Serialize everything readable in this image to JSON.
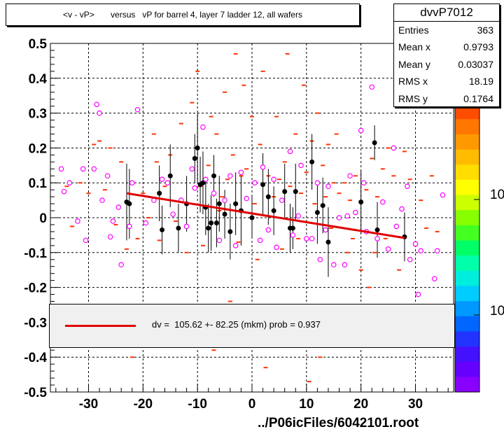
{
  "title": "<v - vP>       versus   vP for barrel 4, layer 7 ladder 12, all wafers",
  "stats": {
    "name": "dvvP7012",
    "rows": [
      {
        "label": "Entries",
        "value": "363"
      },
      {
        "label": "Mean x",
        "value": "0.9793"
      },
      {
        "label": "Mean y",
        "value": "0.03037"
      },
      {
        "label": "RMS x",
        "value": "18.19"
      },
      {
        "label": "RMS y",
        "value": "0.1764"
      }
    ]
  },
  "fit_legend": {
    "text": "dv =  105.62 +- 82.25 (mkm) prob = 0.937",
    "color": "#e00000"
  },
  "footer": "../P06icFiles/6042101.root",
  "palette_labels": [
    "10",
    "10"
  ],
  "palette_colors": [
    "#7a1f00",
    "#b30000",
    "#e00000",
    "#ff2200",
    "#ff4d00",
    "#ff7700",
    "#ff9900",
    "#ffbb00",
    "#ffdd00",
    "#ffff00",
    "#ccff00",
    "#88ff00",
    "#44ff22",
    "#00ff66",
    "#00ffaa",
    "#00eedd",
    "#00ccff",
    "#0099ff",
    "#0066ff",
    "#2233ff",
    "#4411ff",
    "#6600ff",
    "#8800ff"
  ],
  "chart_data": {
    "type": "scatter",
    "xlim": [
      -37,
      37
    ],
    "ylim": [
      -0.5,
      0.5
    ],
    "x_ticks": [
      -30,
      -20,
      -10,
      0,
      10,
      20,
      30
    ],
    "y_ticks": [
      0.5,
      0.4,
      0.3,
      0.2,
      0.1,
      0,
      -0.1,
      -0.2,
      -0.3,
      -0.4,
      -0.5
    ],
    "grid": true,
    "fit_line": {
      "x": [
        -23,
        28
      ],
      "y": [
        0.07,
        -0.058
      ],
      "color": "#e00000"
    },
    "profile_points": [
      {
        "x": -23,
        "y": 0.045,
        "err": 0.11
      },
      {
        "x": -22.5,
        "y": 0.04,
        "err": 0.1
      },
      {
        "x": -17,
        "y": 0.07,
        "err": 0.08
      },
      {
        "x": -16.5,
        "y": -0.035,
        "err": 0.07
      },
      {
        "x": -15,
        "y": 0.12,
        "err": 0.09
      },
      {
        "x": -13.5,
        "y": -0.03,
        "err": 0.07
      },
      {
        "x": -12,
        "y": 0.04,
        "err": 0.08
      },
      {
        "x": -10.5,
        "y": 0.17,
        "err": 0.07
      },
      {
        "x": -10,
        "y": 0.2,
        "err": 0.1
      },
      {
        "x": -9.5,
        "y": 0.095,
        "err": 0.08
      },
      {
        "x": -9,
        "y": 0.1,
        "err": 0.09
      },
      {
        "x": -8.5,
        "y": 0.03,
        "err": 0.08
      },
      {
        "x": -8,
        "y": -0.03,
        "err": 0.07
      },
      {
        "x": -7.5,
        "y": -0.015,
        "err": 0.08
      },
      {
        "x": -7,
        "y": 0.12,
        "err": 0.06
      },
      {
        "x": -6.5,
        "y": -0.015,
        "err": 0.07
      },
      {
        "x": -6,
        "y": 0.04,
        "err": 0.08
      },
      {
        "x": -5,
        "y": 0.01,
        "err": 0.07
      },
      {
        "x": -4,
        "y": -0.04,
        "err": 0.08
      },
      {
        "x": -3,
        "y": 0.04,
        "err": 0.09
      },
      {
        "x": -2,
        "y": 0.02,
        "err": 0.1
      },
      {
        "x": 0,
        "y": 0.0,
        "err": 0.06
      },
      {
        "x": 2,
        "y": 0.095,
        "err": 0.09
      },
      {
        "x": 3,
        "y": 0.06,
        "err": 0.08
      },
      {
        "x": 4,
        "y": 0.02,
        "err": 0.07
      },
      {
        "x": 6,
        "y": 0.075,
        "err": 0.08
      },
      {
        "x": 7,
        "y": -0.03,
        "err": 0.07
      },
      {
        "x": 7.5,
        "y": -0.03,
        "err": 0.06
      },
      {
        "x": 8,
        "y": 0.075,
        "err": 0.08
      },
      {
        "x": 11,
        "y": 0.16,
        "err": 0.08
      },
      {
        "x": 12,
        "y": 0.015,
        "err": 0.09
      },
      {
        "x": 13,
        "y": 0.035,
        "err": 0.08
      },
      {
        "x": 14,
        "y": -0.07,
        "err": 0.1
      },
      {
        "x": 20,
        "y": 0.045,
        "err": 0.09
      },
      {
        "x": 22.5,
        "y": 0.215,
        "err": 0.05
      },
      {
        "x": 23,
        "y": -0.035,
        "err": 0.08
      },
      {
        "x": 28,
        "y": -0.055,
        "err": 0.07
      }
    ],
    "diamond_points": [
      {
        "x": -35,
        "y": 0.14
      },
      {
        "x": -34.5,
        "y": 0.075
      },
      {
        "x": -33.5,
        "y": 0.1
      },
      {
        "x": -32,
        "y": -0.01
      },
      {
        "x": -31,
        "y": 0.14
      },
      {
        "x": -30.5,
        "y": -0.065
      },
      {
        "x": -29,
        "y": 0.14
      },
      {
        "x": -28.5,
        "y": 0.325
      },
      {
        "x": -28,
        "y": 0.3
      },
      {
        "x": -27.5,
        "y": 0.05
      },
      {
        "x": -26.5,
        "y": 0.12
      },
      {
        "x": -26,
        "y": -0.055
      },
      {
        "x": -25.5,
        "y": -0.01
      },
      {
        "x": -24.5,
        "y": 0.03
      },
      {
        "x": -24,
        "y": -0.135
      },
      {
        "x": -22.5,
        "y": -0.025
      },
      {
        "x": -22,
        "y": 0.1
      },
      {
        "x": -21,
        "y": 0.31
      },
      {
        "x": -19.5,
        "y": -0.015
      },
      {
        "x": -18,
        "y": 0.05
      },
      {
        "x": -16.5,
        "y": 0.11
      },
      {
        "x": -15.5,
        "y": 0.1
      },
      {
        "x": -14.5,
        "y": 0.01
      },
      {
        "x": -13,
        "y": 0.05
      },
      {
        "x": -12,
        "y": -0.025
      },
      {
        "x": -11,
        "y": 0.14
      },
      {
        "x": -10.5,
        "y": 0.085
      },
      {
        "x": -9,
        "y": 0.26
      },
      {
        "x": -8.5,
        "y": 0.11
      },
      {
        "x": -7,
        "y": 0.07
      },
      {
        "x": -6,
        "y": -0.065
      },
      {
        "x": -5,
        "y": 0.05
      },
      {
        "x": -4,
        "y": 0.12
      },
      {
        "x": -3,
        "y": -0.08
      },
      {
        "x": -2,
        "y": 0.13
      },
      {
        "x": -1,
        "y": 0.055
      },
      {
        "x": 0.5,
        "y": 0.1
      },
      {
        "x": 1.5,
        "y": -0.065
      },
      {
        "x": 2,
        "y": 0.145
      },
      {
        "x": 3,
        "y": -0.035
      },
      {
        "x": 4,
        "y": 0.11
      },
      {
        "x": 4.5,
        "y": -0.085
      },
      {
        "x": 5.5,
        "y": 0.05
      },
      {
        "x": 7,
        "y": 0.19
      },
      {
        "x": 7.5,
        "y": -0.05
      },
      {
        "x": 8.5,
        "y": 0.005
      },
      {
        "x": 9,
        "y": 0.15
      },
      {
        "x": 10,
        "y": -0.06
      },
      {
        "x": 11,
        "y": -0.06
      },
      {
        "x": 12,
        "y": 0.1
      },
      {
        "x": 12.5,
        "y": -0.12
      },
      {
        "x": 13.5,
        "y": -0.035
      },
      {
        "x": 14,
        "y": 0.09
      },
      {
        "x": 15,
        "y": -0.135
      },
      {
        "x": 16,
        "y": 0.0
      },
      {
        "x": 17,
        "y": -0.135
      },
      {
        "x": 17.5,
        "y": 0.005
      },
      {
        "x": 18,
        "y": 0.12
      },
      {
        "x": 19,
        "y": 0.015
      },
      {
        "x": 20,
        "y": 0.25
      },
      {
        "x": 20.5,
        "y": 0.1
      },
      {
        "x": 21,
        "y": -0.04
      },
      {
        "x": 22,
        "y": 0.375
      },
      {
        "x": 23,
        "y": -0.06
      },
      {
        "x": 24,
        "y": 0.045
      },
      {
        "x": 25,
        "y": -0.09
      },
      {
        "x": 26,
        "y": 0.2
      },
      {
        "x": 26.5,
        "y": -0.025
      },
      {
        "x": 27.5,
        "y": 0.025
      },
      {
        "x": 28.5,
        "y": 0.09
      },
      {
        "x": 29,
        "y": -0.12
      },
      {
        "x": 30,
        "y": -0.075
      },
      {
        "x": 30.5,
        "y": -0.22
      },
      {
        "x": 31,
        "y": -0.095
      },
      {
        "x": 33.5,
        "y": -0.175
      },
      {
        "x": 34,
        "y": -0.095
      },
      {
        "x": 35,
        "y": 0.065
      }
    ],
    "dash_points": [
      {
        "x": -34,
        "y": 0.09
      },
      {
        "x": -33,
        "y": -0.025
      },
      {
        "x": -31.5,
        "y": 0.1
      },
      {
        "x": -30,
        "y": 0.07
      },
      {
        "x": -29,
        "y": 0.21
      },
      {
        "x": -28,
        "y": 0.22
      },
      {
        "x": -27,
        "y": 0.08
      },
      {
        "x": -26,
        "y": 0.2
      },
      {
        "x": -25,
        "y": -0.02
      },
      {
        "x": -24,
        "y": 0.16
      },
      {
        "x": -23,
        "y": -0.09
      },
      {
        "x": -22,
        "y": -0.4
      },
      {
        "x": -21,
        "y": -0.06
      },
      {
        "x": -20,
        "y": 0.07
      },
      {
        "x": -19,
        "y": 0.0
      },
      {
        "x": -18,
        "y": 0.24
      },
      {
        "x": -17.5,
        "y": 0.16
      },
      {
        "x": -17,
        "y": -0.065
      },
      {
        "x": -16,
        "y": 0.09
      },
      {
        "x": -15,
        "y": 0.18
      },
      {
        "x": -14,
        "y": -0.01
      },
      {
        "x": -13,
        "y": 0.27
      },
      {
        "x": -12,
        "y": -0.1
      },
      {
        "x": -11,
        "y": 0.33
      },
      {
        "x": -10,
        "y": 0.42
      },
      {
        "x": -9.5,
        "y": 0.09
      },
      {
        "x": -9,
        "y": -0.08
      },
      {
        "x": -8,
        "y": 0.15
      },
      {
        "x": -7.5,
        "y": 0.29
      },
      {
        "x": -7,
        "y": -0.38
      },
      {
        "x": -6.5,
        "y": 0.24
      },
      {
        "x": -6,
        "y": 0.02
      },
      {
        "x": -5.5,
        "y": 0.06
      },
      {
        "x": -5,
        "y": 0.36
      },
      {
        "x": -4.5,
        "y": 0.11
      },
      {
        "x": -4,
        "y": -0.24
      },
      {
        "x": -3.5,
        "y": 0.18
      },
      {
        "x": -3,
        "y": 0.47
      },
      {
        "x": -2.5,
        "y": -0.07
      },
      {
        "x": -2,
        "y": 0.12
      },
      {
        "x": -1.5,
        "y": 0.38
      },
      {
        "x": -1,
        "y": 0.14
      },
      {
        "x": 0,
        "y": 0.29
      },
      {
        "x": 0.5,
        "y": 0.04
      },
      {
        "x": 1,
        "y": -0.12
      },
      {
        "x": 1.5,
        "y": 0.21
      },
      {
        "x": 2,
        "y": 0.42
      },
      {
        "x": 2.5,
        "y": -0.43
      },
      {
        "x": 3,
        "y": 0.12
      },
      {
        "x": 3.5,
        "y": -0.35
      },
      {
        "x": 4,
        "y": 0.06
      },
      {
        "x": 4.5,
        "y": 0.29
      },
      {
        "x": 5,
        "y": 0.11
      },
      {
        "x": 5.5,
        "y": -0.09
      },
      {
        "x": 6,
        "y": 0.16
      },
      {
        "x": 6.5,
        "y": 0.47
      },
      {
        "x": 7,
        "y": 0.09
      },
      {
        "x": 8,
        "y": 0.24
      },
      {
        "x": 8.5,
        "y": -0.06
      },
      {
        "x": 9,
        "y": 0.07
      },
      {
        "x": 9.5,
        "y": 0.38
      },
      {
        "x": 10,
        "y": 0.13
      },
      {
        "x": 10.5,
        "y": -0.47
      },
      {
        "x": 11,
        "y": 0.22
      },
      {
        "x": 11.5,
        "y": 0.04
      },
      {
        "x": 12,
        "y": 0.3
      },
      {
        "x": 12.5,
        "y": -0.4
      },
      {
        "x": 13,
        "y": 0.15
      },
      {
        "x": 13.5,
        "y": 0.06
      },
      {
        "x": 14,
        "y": 0.21
      },
      {
        "x": 14.5,
        "y": -0.03
      },
      {
        "x": 15,
        "y": 0.1
      },
      {
        "x": 15.5,
        "y": 0.24
      },
      {
        "x": 16,
        "y": 0.07
      },
      {
        "x": 17,
        "y": 0.1
      },
      {
        "x": 17.5,
        "y": -0.1
      },
      {
        "x": 18,
        "y": 0.05
      },
      {
        "x": 18.5,
        "y": -0.06
      },
      {
        "x": 19,
        "y": 0.12
      },
      {
        "x": 20,
        "y": -0.15
      },
      {
        "x": 21,
        "y": 0.08
      },
      {
        "x": 21.5,
        "y": -0.2
      },
      {
        "x": 22,
        "y": 0.17
      },
      {
        "x": 22.5,
        "y": -0.1
      },
      {
        "x": 23,
        "y": 0.06
      },
      {
        "x": 24,
        "y": 0.14
      },
      {
        "x": 24.5,
        "y": -0.06
      },
      {
        "x": 25,
        "y": 0.2
      },
      {
        "x": 26,
        "y": 0.12
      },
      {
        "x": 26.5,
        "y": 0.48
      },
      {
        "x": 27,
        "y": -0.15
      },
      {
        "x": 28,
        "y": 0.19
      },
      {
        "x": 29,
        "y": 0.11
      },
      {
        "x": 30,
        "y": -0.08
      },
      {
        "x": 31,
        "y": 0.05
      },
      {
        "x": 32,
        "y": -0.03
      },
      {
        "x": 33,
        "y": 0.12
      },
      {
        "x": 34,
        "y": -0.04
      }
    ]
  }
}
